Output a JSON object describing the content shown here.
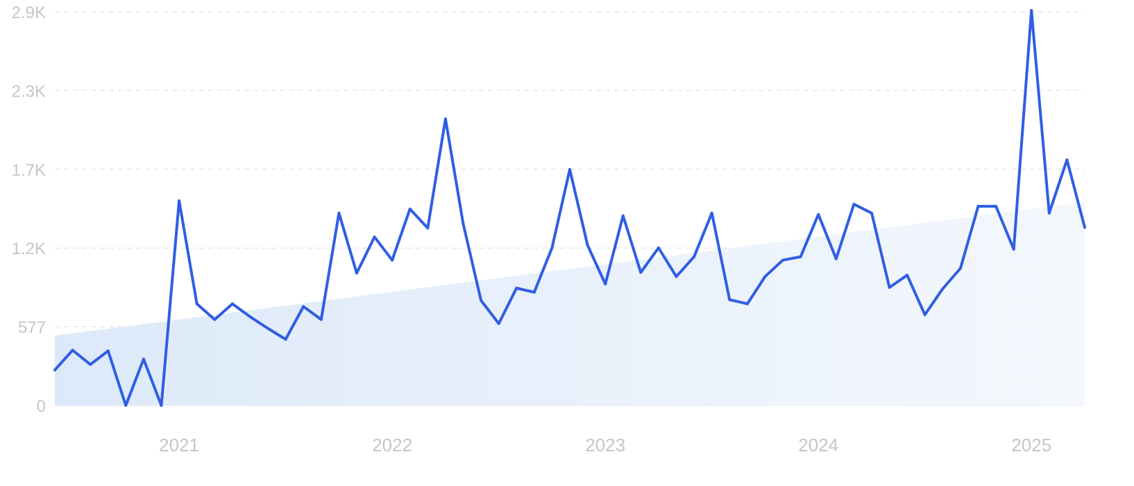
{
  "chart_data": {
    "type": "line",
    "title": "",
    "xlabel": "",
    "ylabel": "",
    "y_ticks": [
      {
        "label": "0",
        "value": 0
      },
      {
        "label": "577",
        "value": 577
      },
      {
        "label": "1.2K",
        "value": 1154
      },
      {
        "label": "1.7K",
        "value": 1731
      },
      {
        "label": "2.3K",
        "value": 2308
      },
      {
        "label": "2.9K",
        "value": 2885
      }
    ],
    "x_ticks": [
      {
        "label": "2021",
        "date": "2021-01"
      },
      {
        "label": "2022",
        "date": "2022-01"
      },
      {
        "label": "2023",
        "date": "2023-01"
      },
      {
        "label": "2024",
        "date": "2024-01"
      },
      {
        "label": "2025",
        "date": "2025-01"
      }
    ],
    "ylim": [
      0,
      2885
    ],
    "xlim": [
      "2020-06",
      "2025-04"
    ],
    "grid": true,
    "legend": "none",
    "series": [
      {
        "color": "#2f5ee3",
        "x": [
          "2020-06",
          "2020-07",
          "2020-08",
          "2020-09",
          "2020-10",
          "2020-11",
          "2020-12",
          "2021-01",
          "2021-02",
          "2021-03",
          "2021-04",
          "2021-05",
          "2021-06",
          "2021-07",
          "2021-08",
          "2021-09",
          "2021-10",
          "2021-11",
          "2021-12",
          "2022-01",
          "2022-02",
          "2022-03",
          "2022-04",
          "2022-05",
          "2022-06",
          "2022-07",
          "2022-08",
          "2022-09",
          "2022-10",
          "2022-11",
          "2022-12",
          "2023-01",
          "2023-02",
          "2023-03",
          "2023-04",
          "2023-05",
          "2023-06",
          "2023-07",
          "2023-08",
          "2023-09",
          "2023-10",
          "2023-11",
          "2023-12",
          "2024-01",
          "2024-02",
          "2024-03",
          "2024-04",
          "2024-05",
          "2024-06",
          "2024-07",
          "2024-08",
          "2024-09",
          "2024-10",
          "2024-11",
          "2024-12",
          "2025-01",
          "2025-02",
          "2025-03",
          "2025-04"
        ],
        "values": [
          260,
          405,
          300,
          400,
          0,
          340,
          0,
          1500,
          745,
          630,
          745,
          650,
          565,
          485,
          725,
          630,
          1410,
          970,
          1235,
          1065,
          1440,
          1300,
          2100,
          1330,
          770,
          600,
          860,
          830,
          1155,
          1730,
          1175,
          890,
          1390,
          975,
          1155,
          945,
          1090,
          1410,
          775,
          745,
          945,
          1065,
          1090,
          1400,
          1075,
          1475,
          1410,
          865,
          955,
          665,
          855,
          1005,
          1460,
          1460,
          1145,
          2895,
          1410,
          1800,
          1305
        ]
      }
    ],
    "trend_values": [
      512,
      1490
    ],
    "colors": {
      "line": "#2f5ee3",
      "trend_fill_start": "#dde9f9",
      "trend_fill_end": "#f4f8fd",
      "grid": "#d6dde8",
      "tick_text": "#c3c6cc"
    }
  }
}
